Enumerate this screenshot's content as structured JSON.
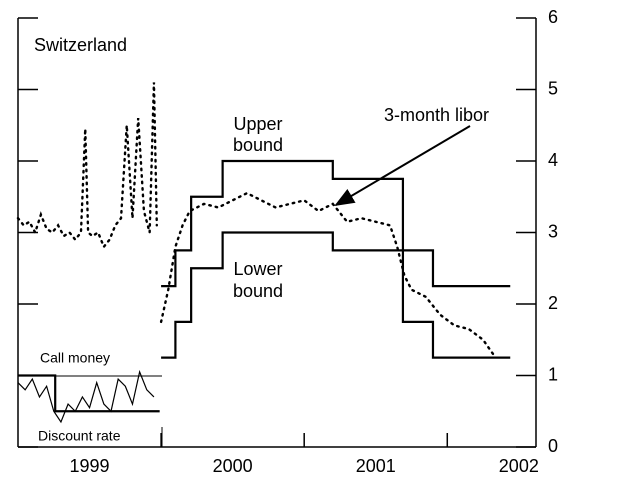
{
  "chart_data": {
    "type": "line",
    "title": "Switzerland",
    "annotations": {
      "upper": [
        "Upper",
        "bound"
      ],
      "lower": [
        "Lower",
        "bound"
      ],
      "libor": "3-month libor",
      "call": "Call money",
      "discount": "Discount rate"
    },
    "xlim": [
      1999.0,
      2002.62
    ],
    "xticks": [
      2000,
      2001,
      2002
    ],
    "xtick_labels": [
      {
        "value": 1999.5,
        "label": "1999"
      },
      {
        "value": 2000.5,
        "label": "2000"
      },
      {
        "value": 2001.5,
        "label": "2001"
      },
      {
        "value": 2002.5,
        "label": "2002"
      }
    ],
    "ylim": [
      0,
      6
    ],
    "yticks": [
      0,
      1,
      2,
      3,
      4,
      5,
      6
    ],
    "series": [
      {
        "name": "Upper bound",
        "color": "#000000",
        "style": "solid",
        "step": true,
        "x": [
          2000.0,
          2000.1,
          2000.21,
          2000.43,
          2001.2,
          2001.69,
          2001.9,
          2002.44
        ],
        "values": [
          2.25,
          2.75,
          3.5,
          4,
          3.75,
          2.75,
          2.25,
          2.25
        ]
      },
      {
        "name": "Lower bound",
        "color": "#000000",
        "style": "solid",
        "step": true,
        "x": [
          2000.0,
          2000.1,
          2000.21,
          2000.43,
          2001.2,
          2001.69,
          2001.9,
          2002.44
        ],
        "values": [
          1.25,
          1.75,
          2.5,
          3,
          2.75,
          1.75,
          1.25,
          1.25
        ]
      },
      {
        "name": "3-month libor",
        "color": "#000000",
        "style": "dotted",
        "step": false,
        "x": [
          1999.0,
          1999.04,
          1999.08,
          1999.12,
          1999.16,
          1999.2,
          1999.24,
          1999.28,
          1999.32,
          1999.36,
          1999.4,
          1999.44,
          1999.47,
          1999.49,
          1999.52,
          1999.56,
          1999.6,
          1999.64,
          1999.68,
          1999.72,
          1999.76,
          1999.8,
          1999.84,
          1999.88,
          1999.92,
          1999.95,
          1999.97,
          null,
          2000.0,
          2000.05,
          2000.1,
          2000.15,
          2000.2,
          2000.3,
          2000.4,
          2000.5,
          2000.6,
          2000.7,
          2000.8,
          2000.9,
          2001.0,
          2001.1,
          2001.2,
          2001.3,
          2001.4,
          2001.5,
          2001.6,
          2001.65,
          2001.7,
          2001.75,
          2001.85,
          2001.95,
          2002.05,
          2002.15,
          2002.25,
          2002.32
        ],
        "values": [
          3.2,
          3.1,
          3.15,
          3.0,
          3.25,
          3.05,
          3.0,
          3.1,
          2.95,
          3.0,
          2.9,
          3.0,
          4.45,
          3.0,
          2.95,
          3.0,
          2.8,
          2.9,
          3.1,
          3.2,
          4.5,
          3.2,
          4.6,
          3.3,
          3.0,
          5.1,
          3.1,
          null,
          1.75,
          2.2,
          2.8,
          3.1,
          3.3,
          3.4,
          3.35,
          3.45,
          3.55,
          3.45,
          3.35,
          3.4,
          3.45,
          3.3,
          3.4,
          3.15,
          3.2,
          3.15,
          3.1,
          2.8,
          2.4,
          2.2,
          2.1,
          1.85,
          1.7,
          1.65,
          1.5,
          1.3
        ]
      },
      {
        "name": "Call money",
        "color": "#000000",
        "style": "thin",
        "step": false,
        "x": [
          1999.0,
          1999.05,
          1999.1,
          1999.15,
          1999.2,
          1999.25,
          1999.3,
          1999.35,
          1999.4,
          1999.45,
          1999.5,
          1999.55,
          1999.6,
          1999.65,
          1999.7,
          1999.75,
          1999.8,
          1999.85,
          1999.9,
          1999.95
        ],
        "values": [
          0.9,
          0.8,
          0.95,
          0.7,
          0.85,
          0.5,
          0.35,
          0.6,
          0.5,
          0.7,
          0.55,
          0.9,
          0.6,
          0.5,
          0.95,
          0.85,
          0.6,
          1.05,
          0.8,
          0.7
        ]
      },
      {
        "name": "Discount rate",
        "color": "#000000",
        "style": "solid",
        "step": true,
        "x": [
          1999.0,
          1999.26,
          1999.99
        ],
        "values": [
          1,
          0.5,
          0.5
        ]
      }
    ]
  }
}
